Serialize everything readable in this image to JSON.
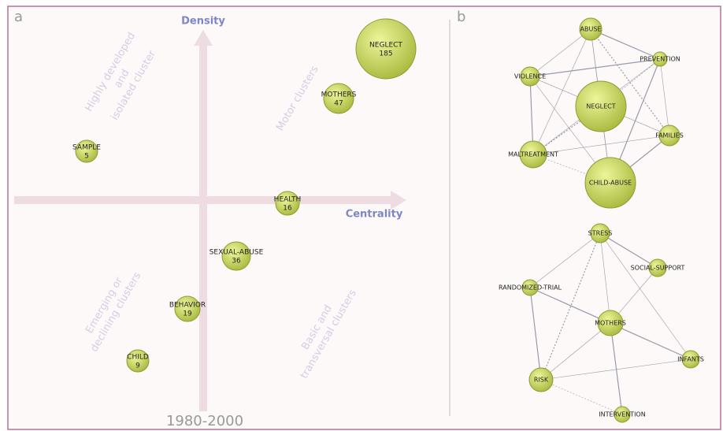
{
  "panel_a": {
    "label": "a",
    "y_axis": "Density",
    "x_axis": "Centrality",
    "period": "1980-2000",
    "quadrants": [
      [
        "Highly developed",
        "and",
        "isolated cluster"
      ],
      [
        "Motor clusters"
      ],
      [
        "Emerging or",
        "declining clusters"
      ],
      [
        "Basic and",
        "transversal clusters"
      ]
    ],
    "clusters": [
      {
        "name": "NEGLECT",
        "count": 185
      },
      {
        "name": "MOTHERS",
        "count": 47
      },
      {
        "name": "SAMPLE",
        "count": 5
      },
      {
        "name": "HEALTH",
        "count": 16
      },
      {
        "name": "SEXUAL-ABUSE",
        "count": 36
      },
      {
        "name": "BEHAVIOR",
        "count": 19
      },
      {
        "name": "CHILD",
        "count": 9
      }
    ]
  },
  "panel_b": {
    "label": "b",
    "networks": [
      {
        "nodes": [
          "ABUSE",
          "PREVENTION",
          "VIOLENCE",
          "NEGLECT",
          "FAMILIES",
          "MALTREATMENT",
          "CHILD-ABUSE"
        ]
      },
      {
        "nodes": [
          "STRESS",
          "SOCIAL-SUPPORT",
          "RANDOMIZED-TRIAL",
          "MOTHERS",
          "INFANTS",
          "RISK",
          "INTERVENTION"
        ]
      }
    ]
  }
}
